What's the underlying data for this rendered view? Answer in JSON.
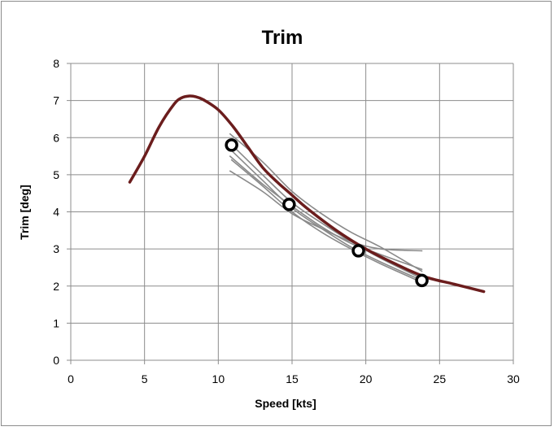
{
  "chart_data": {
    "type": "line",
    "title": "Trim",
    "xlabel": "Speed [kts]",
    "ylabel": "Trim [deg]",
    "xlim": [
      0,
      30
    ],
    "ylim": [
      0,
      8
    ],
    "xticks": [
      "0",
      "5",
      "10",
      "15",
      "20",
      "25",
      "30"
    ],
    "yticks": [
      "0",
      "1",
      "2",
      "3",
      "4",
      "5",
      "6",
      "7",
      "8"
    ],
    "grid": true,
    "legend": "none",
    "colors": {
      "main": "#6b1d1d",
      "gray": "#8a8a8a",
      "markers": "#000000",
      "grid": "#8c8c8c"
    },
    "series": [
      {
        "kind": "main",
        "x": [
          4,
          5,
          6,
          7,
          7.5,
          8,
          8.5,
          9,
          10,
          11,
          12,
          13,
          14,
          15,
          16,
          18,
          20,
          22,
          24,
          26,
          28
        ],
        "y": [
          4.8,
          5.5,
          6.3,
          6.9,
          7.07,
          7.12,
          7.1,
          7.02,
          6.75,
          6.3,
          5.75,
          5.2,
          4.8,
          4.45,
          4.1,
          3.5,
          3.0,
          2.6,
          2.25,
          2.05,
          1.85
        ]
      },
      {
        "kind": "gray",
        "x": [
          10.8,
          13,
          15,
          17,
          19,
          21,
          23.8
        ],
        "y": [
          6.1,
          5.35,
          4.55,
          3.95,
          3.45,
          3.05,
          2.4
        ]
      },
      {
        "kind": "gray",
        "x": [
          10.8,
          13,
          15,
          17,
          19,
          21,
          23.8
        ],
        "y": [
          5.85,
          5.0,
          4.25,
          3.7,
          3.2,
          2.75,
          2.2
        ]
      },
      {
        "kind": "gray",
        "x": [
          10.9,
          13,
          15,
          17,
          19,
          21,
          23.8
        ],
        "y": [
          5.65,
          4.85,
          4.1,
          3.55,
          3.05,
          2.65,
          2.15
        ]
      },
      {
        "kind": "gray",
        "x": [
          10.9,
          13,
          15,
          17,
          19,
          21,
          23.8
        ],
        "y": [
          5.4,
          4.7,
          4.0,
          3.45,
          3.0,
          2.6,
          2.1
        ]
      },
      {
        "kind": "gray",
        "x": [
          10.8,
          13,
          15,
          17,
          19,
          21,
          23.8
        ],
        "y": [
          5.5,
          4.75,
          4.15,
          3.6,
          3.15,
          2.85,
          2.45
        ]
      },
      {
        "kind": "gray",
        "x": [
          10.8,
          13,
          15,
          17,
          19,
          21,
          23.8
        ],
        "y": [
          5.1,
          4.55,
          3.95,
          3.55,
          3.2,
          3.0,
          2.95
        ]
      }
    ],
    "markers": {
      "x": [
        10.9,
        14.8,
        19.5,
        23.8
      ],
      "y": [
        5.8,
        4.2,
        2.95,
        2.15
      ]
    }
  }
}
